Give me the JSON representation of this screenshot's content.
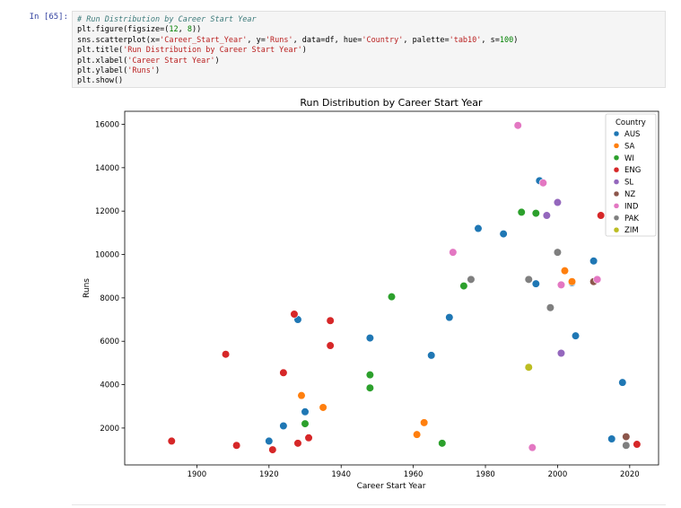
{
  "cell": {
    "prompt": "In [65]:",
    "lines": [
      [
        {
          "t": "# Run Distribution by Career Start Year",
          "c": "c"
        }
      ],
      [
        {
          "t": "plt.figure(figsize=("
        },
        {
          "t": "12",
          "c": "n"
        },
        {
          "t": ", "
        },
        {
          "t": "8",
          "c": "n"
        },
        {
          "t": "))"
        }
      ],
      [
        {
          "t": "sns.scatterplot(x="
        },
        {
          "t": "'Career_Start_Year'",
          "c": "s"
        },
        {
          "t": ", y="
        },
        {
          "t": "'Runs'",
          "c": "s"
        },
        {
          "t": ", data=df, hue="
        },
        {
          "t": "'Country'",
          "c": "s"
        },
        {
          "t": ", palette="
        },
        {
          "t": "'tab10'",
          "c": "s"
        },
        {
          "t": ", s="
        },
        {
          "t": "100",
          "c": "n"
        },
        {
          "t": ")"
        }
      ],
      [
        {
          "t": "plt.title("
        },
        {
          "t": "'Run Distribution by Career Start Year'",
          "c": "s"
        },
        {
          "t": ")"
        }
      ],
      [
        {
          "t": "plt.xlabel("
        },
        {
          "t": "'Career Start Year'",
          "c": "s"
        },
        {
          "t": ")"
        }
      ],
      [
        {
          "t": "plt.ylabel("
        },
        {
          "t": "'Runs'",
          "c": "s"
        },
        {
          "t": ")"
        }
      ],
      [
        {
          "t": "plt.show()"
        }
      ]
    ]
  },
  "chart_data": {
    "type": "scatter",
    "title": "Run Distribution by Career Start Year",
    "xlabel": "Career Start Year",
    "ylabel": "Runs",
    "xlim": [
      1880,
      2028
    ],
    "ylim": [
      300,
      16600
    ],
    "xticks": [
      1900,
      1920,
      1940,
      1960,
      1980,
      2000,
      2020
    ],
    "yticks": [
      2000,
      4000,
      6000,
      8000,
      10000,
      12000,
      14000,
      16000
    ],
    "grid": false,
    "legend": {
      "title": "Country",
      "placement": "top-right"
    },
    "series": [
      {
        "name": "AUS",
        "color": "#1f77b4",
        "points": [
          [
            1920,
            1400
          ],
          [
            1924,
            2100
          ],
          [
            1928,
            7000
          ],
          [
            1930,
            2750
          ],
          [
            1948,
            6150
          ],
          [
            1965,
            5350
          ],
          [
            1970,
            7100
          ],
          [
            1978,
            11200
          ],
          [
            1985,
            10950
          ],
          [
            1994,
            8650
          ],
          [
            1995,
            13400
          ],
          [
            2004,
            8700
          ],
          [
            2005,
            6250
          ],
          [
            2010,
            9700
          ],
          [
            2015,
            1500
          ],
          [
            2018,
            4100
          ]
        ]
      },
      {
        "name": "SA",
        "color": "#ff7f0e",
        "points": [
          [
            1929,
            3500
          ],
          [
            1935,
            2950
          ],
          [
            1961,
            1700
          ],
          [
            1963,
            2250
          ],
          [
            2002,
            9250
          ],
          [
            2004,
            8750
          ]
        ]
      },
      {
        "name": "WI",
        "color": "#2ca02c",
        "points": [
          [
            1930,
            2200
          ],
          [
            1948,
            4450
          ],
          [
            1948,
            3850
          ],
          [
            1954,
            8050
          ],
          [
            1968,
            1300
          ],
          [
            1974,
            8550
          ],
          [
            1990,
            11950
          ],
          [
            1994,
            11900
          ]
        ]
      },
      {
        "name": "ENG",
        "color": "#d62728",
        "points": [
          [
            1893,
            1400
          ],
          [
            1908,
            5400
          ],
          [
            1911,
            1200
          ],
          [
            1921,
            1000
          ],
          [
            1924,
            4550
          ],
          [
            1927,
            7250
          ],
          [
            1928,
            1300
          ],
          [
            1931,
            1550
          ],
          [
            1937,
            6950
          ],
          [
            1937,
            5800
          ],
          [
            2012,
            11800
          ],
          [
            2022,
            1250
          ]
        ]
      },
      {
        "name": "SL",
        "color": "#9467bd",
        "points": [
          [
            1997,
            11800
          ],
          [
            2000,
            12400
          ],
          [
            2001,
            5450
          ]
        ]
      },
      {
        "name": "NZ",
        "color": "#8c564b",
        "points": [
          [
            2010,
            8750
          ],
          [
            2019,
            1600
          ]
        ]
      },
      {
        "name": "IND",
        "color": "#e377c2",
        "points": [
          [
            1971,
            10100
          ],
          [
            1989,
            15950
          ],
          [
            1993,
            1100
          ],
          [
            1996,
            13300
          ],
          [
            2001,
            8600
          ],
          [
            2011,
            8850
          ]
        ]
      },
      {
        "name": "PAK",
        "color": "#7f7f7f",
        "points": [
          [
            1976,
            8850
          ],
          [
            1992,
            8850
          ],
          [
            1998,
            7550
          ],
          [
            2000,
            10100
          ],
          [
            2019,
            1200
          ]
        ]
      },
      {
        "name": "ZIM",
        "color": "#bcbd22",
        "points": [
          [
            1992,
            4800
          ]
        ]
      }
    ]
  }
}
